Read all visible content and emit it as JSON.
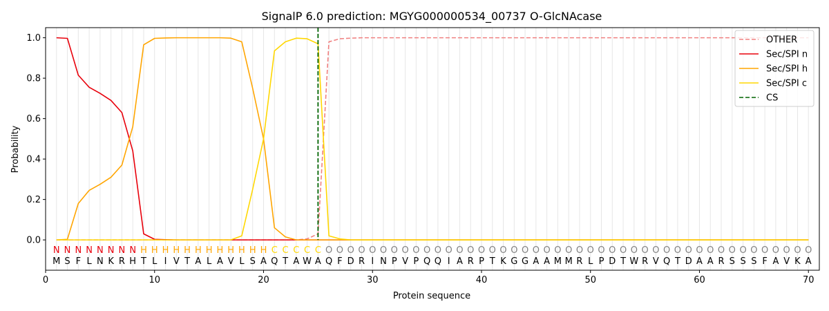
{
  "chart_data": {
    "type": "line",
    "title": "SignalP 6.0 prediction: MGYG000000534_00737 O-GlcNAcase",
    "xlabel": "Protein sequence",
    "ylabel": "Probability",
    "xlim": [
      0,
      71
    ],
    "ylim": [
      -0.15,
      1.05
    ],
    "x_ticks": [
      0,
      10,
      20,
      30,
      40,
      50,
      60,
      70
    ],
    "y_ticks": [
      0.0,
      0.2,
      0.4,
      0.6,
      0.8,
      1.0
    ],
    "x_tick_labels": [
      "0",
      "10",
      "20",
      "30",
      "40",
      "50",
      "60",
      "70"
    ],
    "y_tick_labels": [
      "0.0",
      "0.2",
      "0.4",
      "0.6",
      "0.8",
      "1.0"
    ],
    "grid": "vertical lines at every residue",
    "legend_position": "top-right",
    "sequence": [
      "M",
      "S",
      "F",
      "L",
      "N",
      "K",
      "R",
      "H",
      "T",
      "L",
      "I",
      "V",
      "T",
      "A",
      "L",
      "A",
      "V",
      "L",
      "S",
      "A",
      "Q",
      "T",
      "A",
      "W",
      "A",
      "Q",
      "F",
      "D",
      "R",
      "I",
      "N",
      "P",
      "V",
      "P",
      "Q",
      "Q",
      "I",
      "A",
      "R",
      "P",
      "T",
      "K",
      "G",
      "G",
      "A",
      "A",
      "M",
      "M",
      "R",
      "L",
      "P",
      "D",
      "T",
      "W",
      "R",
      "V",
      "Q",
      "T",
      "D",
      "A",
      "A",
      "R",
      "S",
      "S",
      "S",
      "F",
      "A",
      "V",
      "K",
      "A"
    ],
    "labels": [
      "N",
      "N",
      "N",
      "N",
      "N",
      "N",
      "N",
      "N",
      "H",
      "H",
      "H",
      "H",
      "H",
      "H",
      "H",
      "H",
      "H",
      "H",
      "H",
      "H",
      "C",
      "C",
      "C",
      "C",
      "C",
      "O",
      "O",
      "O",
      "O",
      "O",
      "O",
      "O",
      "O",
      "O",
      "O",
      "O",
      "O",
      "O",
      "O",
      "O",
      "O",
      "O",
      "O",
      "O",
      "O",
      "O",
      "O",
      "O",
      "O",
      "O",
      "O",
      "O",
      "O",
      "O",
      "O",
      "O",
      "O",
      "O",
      "O",
      "O",
      "O",
      "O",
      "O",
      "O",
      "O",
      "O",
      "O",
      "O",
      "O",
      "O"
    ],
    "label_colors": {
      "N": "#e8000b",
      "H": "#ffa500",
      "C": "#ffd700",
      "O": "#808080"
    },
    "cleavage_site": 25,
    "series": [
      {
        "name": "OTHER",
        "color": "#f08080",
        "dash": "dashed",
        "values": [
          0,
          0,
          0,
          0,
          0,
          0,
          0,
          0,
          0,
          0,
          0,
          0,
          0,
          0,
          0,
          0,
          0,
          0,
          0,
          0,
          0,
          0,
          0,
          0.005,
          0.03,
          0.98,
          0.995,
          0.998,
          1,
          1,
          1,
          1,
          1,
          1,
          1,
          1,
          1,
          1,
          1,
          1,
          1,
          1,
          1,
          1,
          1,
          1,
          1,
          1,
          1,
          1,
          1,
          1,
          1,
          1,
          1,
          1,
          1,
          1,
          1,
          1,
          1,
          1,
          1,
          1,
          1,
          1,
          1,
          1,
          1,
          1
        ]
      },
      {
        "name": "Sec/SPI n",
        "color": "#e8000b",
        "dash": "solid",
        "values": [
          1.0,
          0.997,
          0.815,
          0.755,
          0.725,
          0.69,
          0.63,
          0.44,
          0.03,
          0.003,
          0.001,
          0,
          0,
          0,
          0,
          0,
          0,
          0,
          0,
          0,
          0,
          0,
          0,
          0,
          0,
          0,
          0,
          0,
          0,
          0,
          0,
          0,
          0,
          0,
          0,
          0,
          0,
          0,
          0,
          0,
          0,
          0,
          0,
          0,
          0,
          0,
          0,
          0,
          0,
          0,
          0,
          0,
          0,
          0,
          0,
          0,
          0,
          0,
          0,
          0,
          0,
          0,
          0,
          0,
          0,
          0,
          0,
          0,
          0,
          0
        ]
      },
      {
        "name": "Sec/SPI h",
        "color": "#ffa500",
        "dash": "solid",
        "values": [
          0,
          0.003,
          0.18,
          0.245,
          0.275,
          0.31,
          0.37,
          0.56,
          0.965,
          0.997,
          0.999,
          1,
          1,
          1,
          1,
          1,
          0.998,
          0.98,
          0.75,
          0.5,
          0.06,
          0.015,
          0,
          0,
          0,
          0,
          0,
          0,
          0,
          0,
          0,
          0,
          0,
          0,
          0,
          0,
          0,
          0,
          0,
          0,
          0,
          0,
          0,
          0,
          0,
          0,
          0,
          0,
          0,
          0,
          0,
          0,
          0,
          0,
          0,
          0,
          0,
          0,
          0,
          0,
          0,
          0,
          0,
          0,
          0,
          0,
          0,
          0,
          0,
          0
        ]
      },
      {
        "name": "Sec/SPI c",
        "color": "#ffd700",
        "dash": "solid",
        "values": [
          0,
          0,
          0,
          0,
          0,
          0,
          0,
          0,
          0,
          0,
          0,
          0,
          0,
          0,
          0,
          0,
          0,
          0.02,
          0.25,
          0.5,
          0.935,
          0.98,
          0.998,
          0.995,
          0.97,
          0.02,
          0.005,
          0,
          0,
          0,
          0,
          0,
          0,
          0,
          0,
          0,
          0,
          0,
          0,
          0,
          0,
          0,
          0,
          0,
          0,
          0,
          0,
          0,
          0,
          0,
          0,
          0,
          0,
          0,
          0,
          0,
          0,
          0,
          0,
          0,
          0,
          0,
          0,
          0,
          0,
          0,
          0,
          0,
          0,
          0
        ]
      }
    ],
    "cs_legend": {
      "name": "CS",
      "color": "#006400",
      "dash": "dashed"
    }
  }
}
